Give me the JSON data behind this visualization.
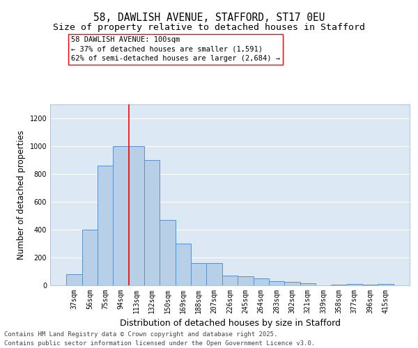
{
  "title_line1": "58, DAWLISH AVENUE, STAFFORD, ST17 0EU",
  "title_line2": "Size of property relative to detached houses in Stafford",
  "xlabel": "Distribution of detached houses by size in Stafford",
  "ylabel": "Number of detached properties",
  "categories": [
    "37sqm",
    "56sqm",
    "75sqm",
    "94sqm",
    "113sqm",
    "132sqm",
    "150sqm",
    "169sqm",
    "188sqm",
    "207sqm",
    "226sqm",
    "245sqm",
    "264sqm",
    "283sqm",
    "302sqm",
    "321sqm",
    "339sqm",
    "358sqm",
    "377sqm",
    "396sqm",
    "415sqm"
  ],
  "values": [
    80,
    400,
    860,
    1000,
    1000,
    900,
    470,
    300,
    160,
    160,
    70,
    65,
    50,
    30,
    25,
    15,
    0,
    5,
    10,
    5,
    10
  ],
  "bar_color": "#b8cfe8",
  "bar_edge_color": "#5b8fc9",
  "vline_color": "red",
  "vline_pos": 3.5,
  "annotation_text": "58 DAWLISH AVENUE: 100sqm\n← 37% of detached houses are smaller (1,591)\n62% of semi-detached houses are larger (2,684) →",
  "annotation_box_facecolor": "white",
  "annotation_box_edgecolor": "red",
  "ylim": [
    0,
    1300
  ],
  "yticks": [
    0,
    200,
    400,
    600,
    800,
    1000,
    1200
  ],
  "bg_color": "#dde8f5",
  "grid_color": "white",
  "footer_line1": "Contains HM Land Registry data © Crown copyright and database right 2025.",
  "footer_line2": "Contains public sector information licensed under the Open Government Licence v3.0.",
  "title_fontsize": 10.5,
  "subtitle_fontsize": 9.5,
  "tick_fontsize": 7,
  "ylabel_fontsize": 8.5,
  "xlabel_fontsize": 9,
  "annotation_fontsize": 7.5,
  "footer_fontsize": 6.5
}
